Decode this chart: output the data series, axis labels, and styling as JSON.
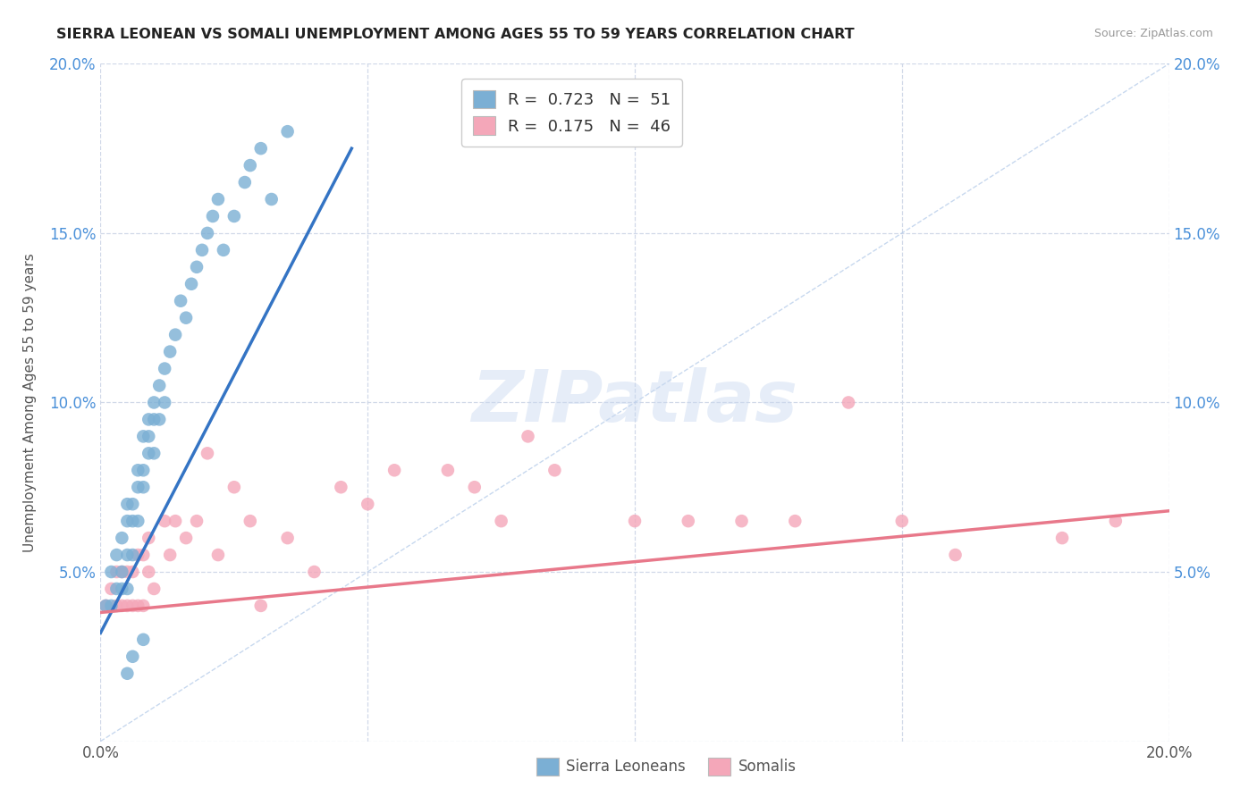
{
  "title": "SIERRA LEONEAN VS SOMALI UNEMPLOYMENT AMONG AGES 55 TO 59 YEARS CORRELATION CHART",
  "source": "Source: ZipAtlas.com",
  "ylabel": "Unemployment Among Ages 55 to 59 years",
  "xlim": [
    0.0,
    0.2
  ],
  "ylim": [
    0.0,
    0.2
  ],
  "xticks": [
    0.0,
    0.05,
    0.1,
    0.15,
    0.2
  ],
  "yticks": [
    0.0,
    0.05,
    0.1,
    0.15,
    0.2
  ],
  "xticklabels": [
    "0.0%",
    "",
    "",
    "",
    "20.0%"
  ],
  "yticklabels_left": [
    "",
    "5.0%",
    "10.0%",
    "15.0%",
    "20.0%"
  ],
  "yticklabels_right": [
    "",
    "5.0%",
    "10.0%",
    "15.0%",
    "20.0%"
  ],
  "legend_bottom_labels": [
    "Sierra Leoneans",
    "Somalis"
  ],
  "sierra_R": "0.723",
  "sierra_N": "51",
  "somali_R": "0.175",
  "somali_N": "46",
  "sierra_color": "#7bafd4",
  "somali_color": "#f4a7b9",
  "sierra_line_color": "#3474c4",
  "somali_line_color": "#e8788a",
  "diagonal_color": "#b0c8e8",
  "watermark": "ZIPatlas",
  "sl_line_x0": 0.0,
  "sl_line_x1": 0.047,
  "sl_line_y0": 0.032,
  "sl_line_y1": 0.175,
  "so_line_x0": 0.0,
  "so_line_x1": 0.2,
  "so_line_y0": 0.038,
  "so_line_y1": 0.068,
  "sl_x": [
    0.001,
    0.002,
    0.002,
    0.003,
    0.003,
    0.004,
    0.004,
    0.004,
    0.005,
    0.005,
    0.005,
    0.005,
    0.006,
    0.006,
    0.006,
    0.007,
    0.007,
    0.007,
    0.008,
    0.008,
    0.008,
    0.009,
    0.009,
    0.009,
    0.01,
    0.01,
    0.01,
    0.011,
    0.011,
    0.012,
    0.012,
    0.013,
    0.014,
    0.015,
    0.016,
    0.017,
    0.018,
    0.019,
    0.02,
    0.021,
    0.022,
    0.023,
    0.025,
    0.027,
    0.028,
    0.03,
    0.032,
    0.035,
    0.005,
    0.006,
    0.008
  ],
  "sl_y": [
    0.04,
    0.05,
    0.04,
    0.045,
    0.055,
    0.05,
    0.06,
    0.045,
    0.055,
    0.065,
    0.07,
    0.045,
    0.065,
    0.07,
    0.055,
    0.075,
    0.065,
    0.08,
    0.08,
    0.09,
    0.075,
    0.09,
    0.095,
    0.085,
    0.1,
    0.095,
    0.085,
    0.105,
    0.095,
    0.11,
    0.1,
    0.115,
    0.12,
    0.13,
    0.125,
    0.135,
    0.14,
    0.145,
    0.15,
    0.155,
    0.16,
    0.145,
    0.155,
    0.165,
    0.17,
    0.175,
    0.16,
    0.18,
    0.02,
    0.025,
    0.03
  ],
  "so_x": [
    0.001,
    0.002,
    0.003,
    0.003,
    0.004,
    0.004,
    0.005,
    0.005,
    0.006,
    0.006,
    0.007,
    0.007,
    0.008,
    0.008,
    0.009,
    0.009,
    0.01,
    0.012,
    0.013,
    0.014,
    0.016,
    0.018,
    0.02,
    0.022,
    0.025,
    0.028,
    0.03,
    0.035,
    0.04,
    0.045,
    0.05,
    0.055,
    0.065,
    0.07,
    0.075,
    0.08,
    0.085,
    0.1,
    0.11,
    0.12,
    0.13,
    0.14,
    0.15,
    0.16,
    0.18,
    0.19
  ],
  "so_y": [
    0.04,
    0.045,
    0.04,
    0.05,
    0.04,
    0.05,
    0.04,
    0.05,
    0.04,
    0.05,
    0.04,
    0.055,
    0.04,
    0.055,
    0.05,
    0.06,
    0.045,
    0.065,
    0.055,
    0.065,
    0.06,
    0.065,
    0.085,
    0.055,
    0.075,
    0.065,
    0.04,
    0.06,
    0.05,
    0.075,
    0.07,
    0.08,
    0.08,
    0.075,
    0.065,
    0.09,
    0.08,
    0.065,
    0.065,
    0.065,
    0.065,
    0.1,
    0.065,
    0.055,
    0.06,
    0.065
  ]
}
